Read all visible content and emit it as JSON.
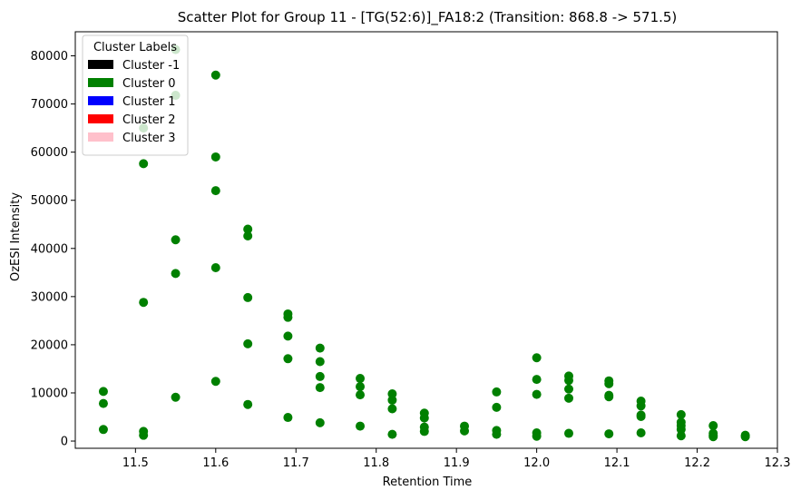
{
  "chart_data": {
    "type": "scatter",
    "title": "Scatter Plot for Group 11 - [TG(52:6)]_FA18:2 (Transition: 868.8 -> 571.5)",
    "xlabel": "Retention Time",
    "ylabel": "OzESI Intensity",
    "xlim": [
      11.425,
      12.3
    ],
    "ylim": [
      -1500,
      85000
    ],
    "xticks": [
      11.5,
      11.6,
      11.7,
      11.8,
      11.9,
      12.0,
      12.1,
      12.2,
      12.3
    ],
    "xtick_labels": [
      "11.5",
      "11.6",
      "11.7",
      "11.8",
      "11.9",
      "12.0",
      "12.1",
      "12.2",
      "12.3"
    ],
    "yticks": [
      0,
      10000,
      20000,
      30000,
      40000,
      50000,
      60000,
      70000,
      80000
    ],
    "ytick_labels": [
      "0",
      "10000",
      "20000",
      "30000",
      "40000",
      "50000",
      "60000",
      "70000",
      "80000"
    ],
    "grid": false,
    "legend": {
      "title": "Cluster Labels",
      "placement": "upper-left",
      "entries": [
        {
          "label": "Cluster -1",
          "color": "#000000"
        },
        {
          "label": "Cluster 0",
          "color": "#008000"
        },
        {
          "label": "Cluster 1",
          "color": "#0000ff"
        },
        {
          "label": "Cluster 2",
          "color": "#ff0000"
        },
        {
          "label": "Cluster 3",
          "color": "#ffc0cb"
        }
      ]
    },
    "series": [
      {
        "cluster": "Cluster 0",
        "color": "#008000",
        "points": [
          [
            11.46,
            10300
          ],
          [
            11.46,
            7800
          ],
          [
            11.46,
            2400
          ],
          [
            11.51,
            65000
          ],
          [
            11.51,
            57600
          ],
          [
            11.51,
            28800
          ],
          [
            11.51,
            2000
          ],
          [
            11.51,
            1200
          ],
          [
            11.55,
            81300
          ],
          [
            11.55,
            71800
          ],
          [
            11.55,
            41800
          ],
          [
            11.55,
            34800
          ],
          [
            11.55,
            9100
          ],
          [
            11.6,
            76000
          ],
          [
            11.6,
            59000
          ],
          [
            11.6,
            52000
          ],
          [
            11.6,
            36000
          ],
          [
            11.6,
            12400
          ],
          [
            11.64,
            44000
          ],
          [
            11.64,
            42600
          ],
          [
            11.64,
            29800
          ],
          [
            11.64,
            20200
          ],
          [
            11.64,
            7600
          ],
          [
            11.69,
            26400
          ],
          [
            11.69,
            25700
          ],
          [
            11.69,
            21800
          ],
          [
            11.69,
            17100
          ],
          [
            11.69,
            4900
          ],
          [
            11.73,
            19300
          ],
          [
            11.73,
            16500
          ],
          [
            11.73,
            13400
          ],
          [
            11.73,
            11100
          ],
          [
            11.73,
            3800
          ],
          [
            11.78,
            13000
          ],
          [
            11.78,
            11300
          ],
          [
            11.78,
            9600
          ],
          [
            11.78,
            3100
          ],
          [
            11.82,
            9800
          ],
          [
            11.82,
            8500
          ],
          [
            11.82,
            6700
          ],
          [
            11.82,
            1400
          ],
          [
            11.86,
            5800
          ],
          [
            11.86,
            4800
          ],
          [
            11.86,
            2900
          ],
          [
            11.86,
            2000
          ],
          [
            11.91,
            3100
          ],
          [
            11.91,
            2100
          ],
          [
            11.95,
            10200
          ],
          [
            11.95,
            7000
          ],
          [
            11.95,
            2200
          ],
          [
            11.95,
            1400
          ],
          [
            12.0,
            17300
          ],
          [
            12.0,
            12800
          ],
          [
            12.0,
            9700
          ],
          [
            12.0,
            1700
          ],
          [
            12.0,
            1000
          ],
          [
            12.04,
            13500
          ],
          [
            12.04,
            12600
          ],
          [
            12.04,
            10800
          ],
          [
            12.04,
            8900
          ],
          [
            12.04,
            1600
          ],
          [
            12.09,
            12500
          ],
          [
            12.09,
            11900
          ],
          [
            12.09,
            9500
          ],
          [
            12.09,
            9200
          ],
          [
            12.09,
            1500
          ],
          [
            12.13,
            8300
          ],
          [
            12.13,
            7300
          ],
          [
            12.13,
            5400
          ],
          [
            12.13,
            5100
          ],
          [
            12.13,
            1700
          ],
          [
            12.18,
            5500
          ],
          [
            12.18,
            3900
          ],
          [
            12.18,
            3200
          ],
          [
            12.18,
            2400
          ],
          [
            12.18,
            1100
          ],
          [
            12.22,
            3200
          ],
          [
            12.22,
            1600
          ],
          [
            12.22,
            1200
          ],
          [
            12.22,
            900
          ],
          [
            12.26,
            1200
          ],
          [
            12.26,
            900
          ]
        ]
      }
    ]
  }
}
